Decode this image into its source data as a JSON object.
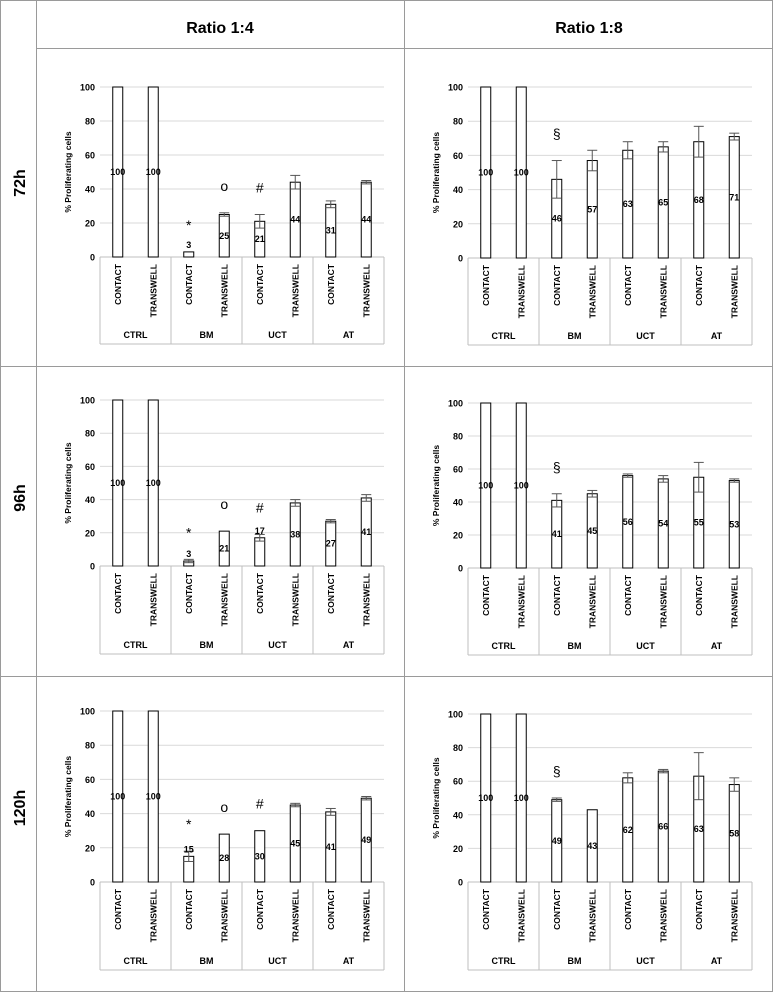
{
  "headers": {
    "col1": "Ratio 1:4",
    "col2": "Ratio 1:8"
  },
  "rows": [
    "72h",
    "96h",
    "120h"
  ],
  "chart_data": [
    {
      "type": "bar",
      "panel": "72h / Ratio 1:4",
      "ylabel": "% Proliferating  cells",
      "ylim": [
        0,
        100
      ],
      "yticks": [
        0,
        20,
        40,
        60,
        80,
        100
      ],
      "categories": [
        "CONTACT",
        "TRANSWELL",
        "CONTACT",
        "TRANSWELL",
        "CONTACT",
        "TRANSWELL",
        "CONTACT",
        "TRANSWELL"
      ],
      "groups": [
        "CTRL",
        "BM",
        "UCT",
        "AT"
      ],
      "values": [
        100,
        100,
        3,
        25,
        21,
        44,
        31,
        44
      ],
      "errors": [
        0,
        0,
        0,
        1,
        4,
        4,
        2,
        1
      ],
      "value_labels": [
        "100",
        "100",
        "3",
        "25",
        "21",
        "44",
        "31",
        "44"
      ],
      "markers": [
        "",
        "",
        "*",
        "o",
        "#",
        "",
        "",
        ""
      ],
      "grid": true
    },
    {
      "type": "bar",
      "panel": "72h / Ratio 1:8",
      "ylabel": "% Proliferating  cells",
      "ylim": [
        0,
        100
      ],
      "yticks": [
        0,
        20,
        40,
        60,
        80,
        100
      ],
      "categories": [
        "CONTACT",
        "TRANSWELL",
        "CONTACT",
        "TRANSWELL",
        "CONTACT",
        "TRANSWELL",
        "CONTACT",
        "TRANSWELL"
      ],
      "groups": [
        "CTRL",
        "BM",
        "UCT",
        "AT"
      ],
      "values": [
        100,
        100,
        46,
        57,
        63,
        65,
        68,
        71
      ],
      "errors": [
        0,
        0,
        11,
        6,
        5,
        3,
        9,
        2
      ],
      "value_labels": [
        "100",
        "100",
        "46",
        "57",
        "63",
        "65",
        "68",
        "71"
      ],
      "markers": [
        "",
        "",
        "§",
        "",
        "",
        "",
        "",
        ""
      ],
      "grid": true
    },
    {
      "type": "bar",
      "panel": "96h / Ratio 1:4",
      "ylabel": "% Proliferating  cells",
      "ylim": [
        0,
        100
      ],
      "yticks": [
        0,
        20,
        40,
        60,
        80,
        100
      ],
      "categories": [
        "CONTACT",
        "TRANSWELL",
        "CONTACT",
        "TRANSWELL",
        "CONTACT",
        "TRANSWELL",
        "CONTACT",
        "TRANSWELL"
      ],
      "groups": [
        "CTRL",
        "BM",
        "UCT",
        "AT"
      ],
      "values": [
        100,
        100,
        3,
        21,
        17,
        38,
        27,
        41
      ],
      "errors": [
        0,
        0,
        1,
        0,
        2,
        2,
        1,
        2
      ],
      "value_labels": [
        "100",
        "100",
        "3",
        "21",
        "17",
        "38",
        "27",
        "41"
      ],
      "markers": [
        "",
        "",
        "*",
        "o",
        "#",
        "",
        "",
        ""
      ],
      "grid": true
    },
    {
      "type": "bar",
      "panel": "96h / Ratio 1:8",
      "ylabel": "% Proliferating  cells",
      "ylim": [
        0,
        100
      ],
      "yticks": [
        0,
        20,
        40,
        60,
        80,
        100
      ],
      "categories": [
        "CONTACT",
        "TRANSWELL",
        "CONTACT",
        "TRANSWELL",
        "CONTACT",
        "TRANSWELL",
        "CONTACT",
        "TRANSWELL"
      ],
      "groups": [
        "CTRL",
        "BM",
        "UCT",
        "AT"
      ],
      "values": [
        100,
        100,
        41,
        45,
        56,
        54,
        55,
        53
      ],
      "errors": [
        0,
        0,
        4,
        2,
        1,
        2,
        9,
        1
      ],
      "value_labels": [
        "100",
        "100",
        "41",
        "45",
        "56",
        "54",
        "55",
        "53"
      ],
      "markers": [
        "",
        "",
        "§",
        "",
        "",
        "",
        "",
        ""
      ],
      "grid": true
    },
    {
      "type": "bar",
      "panel": "120h / Ratio 1:4",
      "ylabel": "% Proliferating  cells",
      "ylim": [
        0,
        100
      ],
      "yticks": [
        0,
        20,
        40,
        60,
        80,
        100
      ],
      "categories": [
        "CONTACT",
        "TRANSWELL",
        "CONTACT",
        "TRANSWELL",
        "CONTACT",
        "TRANSWELL",
        "CONTACT",
        "TRANSWELL"
      ],
      "groups": [
        "CTRL",
        "BM",
        "UCT",
        "AT"
      ],
      "values": [
        100,
        100,
        15,
        28,
        30,
        45,
        41,
        49
      ],
      "errors": [
        0,
        0,
        3,
        0,
        0,
        1,
        2,
        1
      ],
      "value_labels": [
        "100",
        "100",
        "15",
        "28",
        "30",
        "45",
        "41",
        "49"
      ],
      "markers": [
        "",
        "",
        "*",
        "o",
        "#",
        "",
        "",
        ""
      ],
      "grid": true
    },
    {
      "type": "bar",
      "panel": "120h / Ratio 1:8",
      "ylabel": "% Proliferating  cells",
      "ylim": [
        0,
        100
      ],
      "yticks": [
        0,
        20,
        40,
        60,
        80,
        100
      ],
      "categories": [
        "CONTACT",
        "TRANSWELL",
        "CONTACT",
        "TRANSWELL",
        "CONTACT",
        "TRANSWELL",
        "CONTACT",
        "TRANSWELL"
      ],
      "groups": [
        "CTRL",
        "BM",
        "UCT",
        "AT"
      ],
      "values": [
        100,
        100,
        49,
        43,
        62,
        66,
        63,
        58
      ],
      "errors": [
        0,
        0,
        1,
        0,
        3,
        1,
        14,
        4
      ],
      "value_labels": [
        "100",
        "100",
        "49",
        "43",
        "62",
        "66",
        "63",
        "58"
      ],
      "markers": [
        "",
        "",
        "§",
        "",
        "",
        "",
        "",
        ""
      ],
      "grid": true
    }
  ]
}
